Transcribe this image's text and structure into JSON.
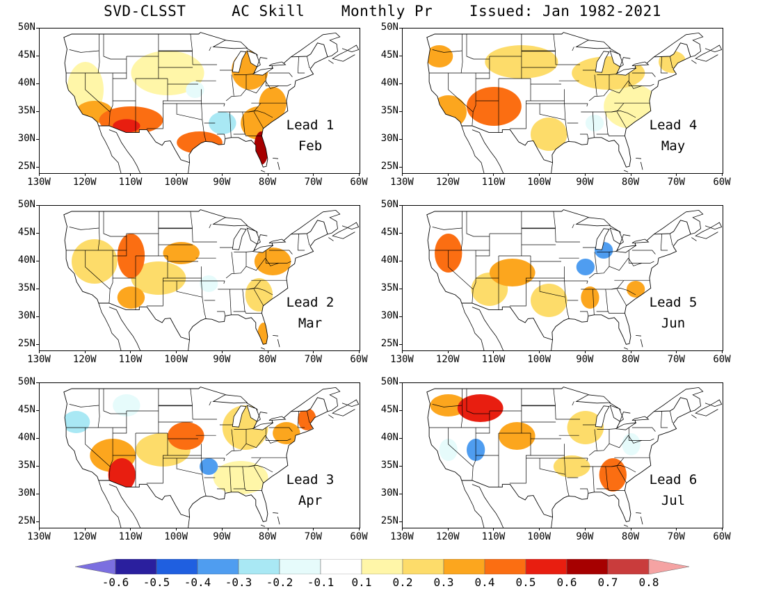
{
  "title": "SVD-CLSST     AC Skill    Monthly Pr    Issued: Jan 1982-2021",
  "lat_labels": [
    "50N",
    "45N",
    "40N",
    "35N",
    "30N",
    "25N"
  ],
  "lon_labels": [
    "130W",
    "120W",
    "110W",
    "100W",
    "90W",
    "80W",
    "70W",
    "60W"
  ],
  "panels": [
    {
      "lead": "Lead 1",
      "month": "Feb",
      "blobs": [
        {
          "lon": -110,
          "lat": 33.5,
          "rx": 7,
          "ry": 2.5,
          "level": 0.45
        },
        {
          "lon": -111,
          "lat": 32.5,
          "rx": 3,
          "ry": 1.2,
          "level": 0.55
        },
        {
          "lon": -118,
          "lat": 35,
          "rx": 4,
          "ry": 2,
          "level": 0.35
        },
        {
          "lon": -95,
          "lat": 29.5,
          "rx": 5,
          "ry": 2,
          "level": 0.4
        },
        {
          "lon": -81.5,
          "lat": 28.5,
          "rx": 1.6,
          "ry": 3,
          "level": 0.6
        },
        {
          "lon": -82,
          "lat": 33,
          "rx": 4,
          "ry": 3,
          "level": 0.35
        },
        {
          "lon": -79,
          "lat": 36.5,
          "rx": 3,
          "ry": 3,
          "level": 0.35
        },
        {
          "lon": -84,
          "lat": 42.5,
          "rx": 4,
          "ry": 3.5,
          "level": 0.3
        },
        {
          "lon": -120,
          "lat": 39,
          "rx": 4,
          "ry": 5,
          "level": 0.15
        },
        {
          "lon": -102,
          "lat": 42,
          "rx": 8,
          "ry": 4,
          "level": 0.15
        },
        {
          "lon": -90,
          "lat": 33,
          "rx": 3,
          "ry": 2,
          "level": -0.25
        },
        {
          "lon": -96,
          "lat": 39,
          "rx": 2,
          "ry": 1.5,
          "level": -0.15
        }
      ]
    },
    {
      "lead": "Lead 4",
      "month": "May",
      "blobs": [
        {
          "lon": -110,
          "lat": 36,
          "rx": 6,
          "ry": 3.5,
          "level": 0.4
        },
        {
          "lon": -120,
          "lat": 35,
          "rx": 4,
          "ry": 3,
          "level": 0.3
        },
        {
          "lon": -122,
          "lat": 45,
          "rx": 3,
          "ry": 2,
          "level": 0.35
        },
        {
          "lon": -104,
          "lat": 44,
          "rx": 8,
          "ry": 3,
          "level": 0.25
        },
        {
          "lon": -98,
          "lat": 31,
          "rx": 4,
          "ry": 3,
          "level": 0.25
        },
        {
          "lon": -85,
          "lat": 42,
          "rx": 8,
          "ry": 3,
          "level": 0.2
        },
        {
          "lon": -80,
          "lat": 36,
          "rx": 6,
          "ry": 4,
          "level": 0.15
        },
        {
          "lon": -71,
          "lat": 44,
          "rx": 3,
          "ry": 2,
          "level": 0.2
        },
        {
          "lon": -88,
          "lat": 33,
          "rx": 2,
          "ry": 1.5,
          "level": -0.15
        }
      ]
    },
    {
      "lead": "Lead 2",
      "month": "Mar",
      "blobs": [
        {
          "lon": -110,
          "lat": 41,
          "rx": 3,
          "ry": 4,
          "level": 0.4
        },
        {
          "lon": -99,
          "lat": 41.5,
          "rx": 4,
          "ry": 2,
          "level": 0.3
        },
        {
          "lon": -110,
          "lat": 33.5,
          "rx": 3,
          "ry": 2,
          "level": 0.35
        },
        {
          "lon": -118,
          "lat": 40,
          "rx": 5,
          "ry": 4,
          "level": 0.2
        },
        {
          "lon": -104,
          "lat": 37,
          "rx": 6,
          "ry": 3,
          "level": 0.2
        },
        {
          "lon": -79,
          "lat": 40,
          "rx": 4,
          "ry": 2.5,
          "level": 0.3
        },
        {
          "lon": -82,
          "lat": 34,
          "rx": 3,
          "ry": 3,
          "level": 0.2
        },
        {
          "lon": -81,
          "lat": 27,
          "rx": 1.3,
          "ry": 2,
          "level": 0.3
        },
        {
          "lon": -93,
          "lat": 36,
          "rx": 2,
          "ry": 1.5,
          "level": -0.15
        }
      ]
    },
    {
      "lead": "Lead 5",
      "month": "Jun",
      "blobs": [
        {
          "lon": -120,
          "lat": 41.5,
          "rx": 3,
          "ry": 3.5,
          "level": 0.4
        },
        {
          "lon": -106,
          "lat": 38,
          "rx": 5,
          "ry": 2.5,
          "level": 0.3
        },
        {
          "lon": -111,
          "lat": 35,
          "rx": 4,
          "ry": 3,
          "level": 0.2
        },
        {
          "lon": -89,
          "lat": 33.5,
          "rx": 2,
          "ry": 2,
          "level": 0.35
        },
        {
          "lon": -79,
          "lat": 35,
          "rx": 2,
          "ry": 1.5,
          "level": 0.3
        },
        {
          "lon": -98,
          "lat": 33,
          "rx": 4,
          "ry": 3,
          "level": 0.2
        },
        {
          "lon": -86,
          "lat": 42,
          "rx": 2,
          "ry": 1.5,
          "level": -0.35
        },
        {
          "lon": -90,
          "lat": 39,
          "rx": 2,
          "ry": 1.5,
          "level": -0.3
        }
      ]
    },
    {
      "lead": "Lead 3",
      "month": "Apr",
      "blobs": [
        {
          "lon": -112,
          "lat": 33.5,
          "rx": 3,
          "ry": 3,
          "level": 0.55
        },
        {
          "lon": -114,
          "lat": 37,
          "rx": 5,
          "ry": 3,
          "level": 0.3
        },
        {
          "lon": -98,
          "lat": 40.5,
          "rx": 4,
          "ry": 2.5,
          "level": 0.45
        },
        {
          "lon": -103,
          "lat": 38,
          "rx": 6,
          "ry": 3,
          "level": 0.25
        },
        {
          "lon": -71.5,
          "lat": 43.5,
          "rx": 2,
          "ry": 2,
          "level": 0.45
        },
        {
          "lon": -76,
          "lat": 41,
          "rx": 3,
          "ry": 2,
          "level": 0.3
        },
        {
          "lon": -85,
          "lat": 42,
          "rx": 5,
          "ry": 4,
          "level": 0.2
        },
        {
          "lon": -86,
          "lat": 33,
          "rx": 6,
          "ry": 3,
          "level": 0.15
        },
        {
          "lon": -93,
          "lat": 35,
          "rx": 2,
          "ry": 1.5,
          "level": -0.35
        },
        {
          "lon": -122,
          "lat": 43,
          "rx": 3,
          "ry": 2,
          "level": -0.2
        },
        {
          "lon": -111,
          "lat": 46,
          "rx": 3,
          "ry": 2,
          "level": -0.15
        }
      ]
    },
    {
      "lead": "Lead 6",
      "month": "Jul",
      "blobs": [
        {
          "lon": -113,
          "lat": 45.5,
          "rx": 5,
          "ry": 2.5,
          "level": 0.5
        },
        {
          "lon": -120,
          "lat": 46,
          "rx": 4,
          "ry": 2,
          "level": 0.3
        },
        {
          "lon": -105,
          "lat": 40.5,
          "rx": 4,
          "ry": 2.5,
          "level": 0.3
        },
        {
          "lon": -84,
          "lat": 33.5,
          "rx": 3,
          "ry": 3,
          "level": 0.4
        },
        {
          "lon": -93,
          "lat": 35,
          "rx": 4,
          "ry": 2,
          "level": 0.25
        },
        {
          "lon": -90,
          "lat": 42,
          "rx": 4,
          "ry": 3,
          "level": 0.2
        },
        {
          "lon": -114,
          "lat": 38,
          "rx": 2,
          "ry": 2,
          "level": -0.3
        },
        {
          "lon": -120,
          "lat": 38,
          "rx": 2,
          "ry": 2,
          "level": -0.15
        },
        {
          "lon": -80,
          "lat": 39,
          "rx": 2,
          "ry": 2,
          "level": -0.15
        }
      ]
    }
  ],
  "colorbar": {
    "labels": [
      "-0.6",
      "-0.5",
      "-0.4",
      "-0.3",
      "-0.2",
      "-0.1",
      "0.1",
      "0.2",
      "0.3",
      "0.4",
      "0.5",
      "0.6",
      "0.7",
      "0.8"
    ],
    "colors": [
      "#7b6fe0",
      "#2a1f9e",
      "#1f5fe0",
      "#4f9df0",
      "#a9e8f4",
      "#e6fbfb",
      "#ffffff",
      "#fff6a8",
      "#fddc6a",
      "#fca61e",
      "#fb6e12",
      "#e81e10",
      "#a60000",
      "#c93c3c",
      "#f5a3a3"
    ]
  }
}
